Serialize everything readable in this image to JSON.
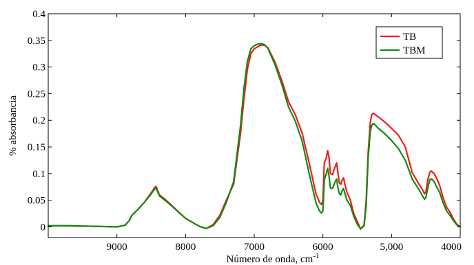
{
  "chart_data": {
    "type": "line",
    "xlabel": "Número de onda, cm",
    "xlabel_sup": "-1",
    "ylabel": "% absorbancia",
    "xlim": [
      10000,
      4000
    ],
    "ylim": [
      -0.02,
      0.4
    ],
    "xticks": [
      {
        "value": 9000,
        "label": "9000"
      },
      {
        "value": 8000,
        "label": "8000"
      },
      {
        "value": 7000,
        "label": "7000"
      },
      {
        "value": 6000,
        "label": "6000"
      },
      {
        "value": 5000,
        "label": "5,000"
      },
      {
        "value": 4000,
        "label": "4000"
      }
    ],
    "yticks": [
      {
        "value": 0,
        "label": "0"
      },
      {
        "value": 0.05,
        "label": "0.05"
      },
      {
        "value": 0.1,
        "label": "0.1"
      },
      {
        "value": 0.15,
        "label": "0.15"
      },
      {
        "value": 0.2,
        "label": "0.2"
      },
      {
        "value": 0.25,
        "label": "0.25"
      },
      {
        "value": 0.3,
        "label": "0.3"
      },
      {
        "value": 0.35,
        "label": "0.35"
      },
      {
        "value": 0.4,
        "label": "0.4"
      }
    ],
    "legend_position": "top-right",
    "series": [
      {
        "name": "TB",
        "color": "#ee1c1c",
        "x": [
          10000,
          9700,
          9300,
          9000,
          8880,
          8820,
          8780,
          8700,
          8600,
          8500,
          8450,
          8430,
          8380,
          8300,
          8200,
          8000,
          7800,
          7700,
          7600,
          7500,
          7400,
          7300,
          7200,
          7150,
          7100,
          7050,
          7000,
          6950,
          6900,
          6850,
          6800,
          6700,
          6600,
          6500,
          6400,
          6300,
          6200,
          6100,
          6050,
          6020,
          6000,
          5980,
          5950,
          5930,
          5910,
          5890,
          5860,
          5830,
          5800,
          5780,
          5760,
          5740,
          5720,
          5700,
          5680,
          5650,
          5600,
          5550,
          5500,
          5450,
          5400,
          5370,
          5340,
          5310,
          5290,
          5270,
          5250,
          5200,
          5100,
          5000,
          4900,
          4800,
          4700,
          4600,
          4550,
          4520,
          4500,
          4470,
          4440,
          4420,
          4400,
          4380,
          4350,
          4300,
          4250,
          4200,
          4150,
          4100,
          4050,
          4000
        ],
        "y": [
          0.002,
          0.002,
          0.001,
          0.0,
          0.003,
          0.012,
          0.022,
          0.032,
          0.046,
          0.064,
          0.074,
          0.076,
          0.06,
          0.052,
          0.04,
          0.016,
          0.001,
          -0.003,
          0.004,
          0.022,
          0.052,
          0.08,
          0.175,
          0.24,
          0.295,
          0.325,
          0.334,
          0.338,
          0.341,
          0.341,
          0.336,
          0.31,
          0.275,
          0.235,
          0.21,
          0.175,
          0.12,
          0.062,
          0.046,
          0.042,
          0.05,
          0.12,
          0.13,
          0.143,
          0.13,
          0.1,
          0.098,
          0.11,
          0.12,
          0.1,
          0.082,
          0.08,
          0.088,
          0.092,
          0.08,
          0.065,
          0.05,
          0.025,
          0.01,
          -0.004,
          0.004,
          0.05,
          0.14,
          0.195,
          0.21,
          0.213,
          0.212,
          0.207,
          0.197,
          0.185,
          0.172,
          0.15,
          0.102,
          0.08,
          0.07,
          0.062,
          0.066,
          0.09,
          0.103,
          0.105,
          0.102,
          0.1,
          0.093,
          0.078,
          0.055,
          0.037,
          0.028,
          0.015,
          0.005,
          0.0
        ]
      },
      {
        "name": "TBM",
        "color": "#128a12",
        "x": [
          10000,
          9700,
          9300,
          9000,
          8880,
          8820,
          8780,
          8700,
          8600,
          8500,
          8450,
          8430,
          8380,
          8300,
          8200,
          8000,
          7800,
          7700,
          7600,
          7500,
          7400,
          7300,
          7200,
          7150,
          7100,
          7050,
          7000,
          6950,
          6900,
          6850,
          6800,
          6700,
          6600,
          6500,
          6400,
          6300,
          6200,
          6100,
          6050,
          6020,
          6000,
          5980,
          5950,
          5930,
          5910,
          5890,
          5860,
          5830,
          5800,
          5780,
          5760,
          5740,
          5720,
          5700,
          5680,
          5650,
          5600,
          5550,
          5500,
          5450,
          5400,
          5370,
          5340,
          5310,
          5290,
          5270,
          5250,
          5200,
          5100,
          5000,
          4900,
          4800,
          4700,
          4600,
          4550,
          4520,
          4500,
          4470,
          4440,
          4420,
          4400,
          4380,
          4350,
          4300,
          4250,
          4200,
          4150,
          4100,
          4050,
          4000
        ],
        "y": [
          0.002,
          0.002,
          0.001,
          0.0,
          0.003,
          0.012,
          0.022,
          0.032,
          0.046,
          0.062,
          0.071,
          0.073,
          0.058,
          0.05,
          0.039,
          0.016,
          0.001,
          -0.003,
          0.002,
          0.018,
          0.048,
          0.085,
          0.19,
          0.26,
          0.31,
          0.334,
          0.34,
          0.343,
          0.344,
          0.342,
          0.335,
          0.305,
          0.268,
          0.225,
          0.198,
          0.16,
          0.1,
          0.045,
          0.03,
          0.026,
          0.03,
          0.088,
          0.1,
          0.11,
          0.095,
          0.073,
          0.072,
          0.082,
          0.09,
          0.073,
          0.062,
          0.06,
          0.068,
          0.072,
          0.063,
          0.05,
          0.04,
          0.02,
          0.005,
          -0.004,
          0.002,
          0.04,
          0.13,
          0.178,
          0.19,
          0.194,
          0.193,
          0.186,
          0.175,
          0.162,
          0.147,
          0.125,
          0.09,
          0.07,
          0.058,
          0.052,
          0.055,
          0.075,
          0.089,
          0.09,
          0.088,
          0.085,
          0.077,
          0.065,
          0.045,
          0.03,
          0.022,
          0.012,
          0.004,
          0.0
        ]
      }
    ]
  }
}
